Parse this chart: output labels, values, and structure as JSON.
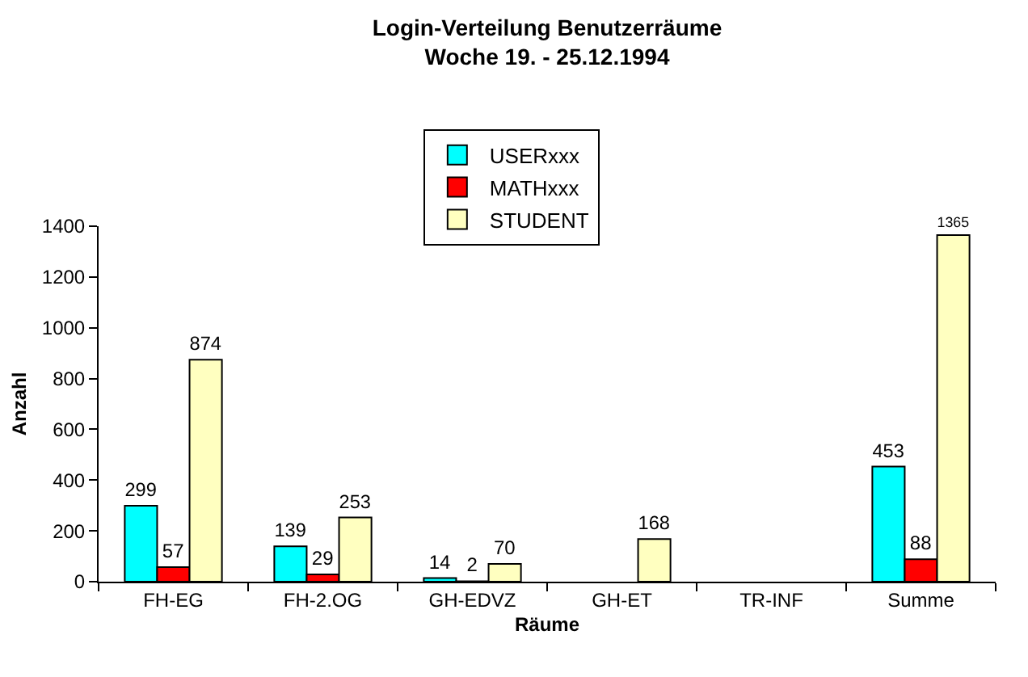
{
  "chart_data": {
    "type": "bar",
    "title": "Login-Verteilung Benutzerräume\nWoche 19. - 25.12.1994",
    "xlabel": "Räume",
    "ylabel": "Anzahl",
    "categories": [
      "FH-EG",
      "FH-2.OG",
      "GH-EDVZ",
      "GH-ET",
      "TR-INF",
      "Summe"
    ],
    "series": [
      {
        "name": "USERxxx",
        "color": "#00ffff",
        "values": [
          299,
          139,
          14,
          null,
          null,
          453
        ]
      },
      {
        "name": "MATHxxx",
        "color": "#ff0000",
        "values": [
          57,
          29,
          2,
          null,
          null,
          88
        ]
      },
      {
        "name": "STUDENT",
        "color": "#ffffc0",
        "values": [
          874,
          253,
          70,
          168,
          null,
          1365
        ]
      }
    ],
    "ylim": [
      0,
      1400
    ],
    "yticks": [
      0,
      200,
      400,
      600,
      800,
      1000,
      1200,
      1400
    ],
    "legend": "top",
    "data_labels": true
  }
}
